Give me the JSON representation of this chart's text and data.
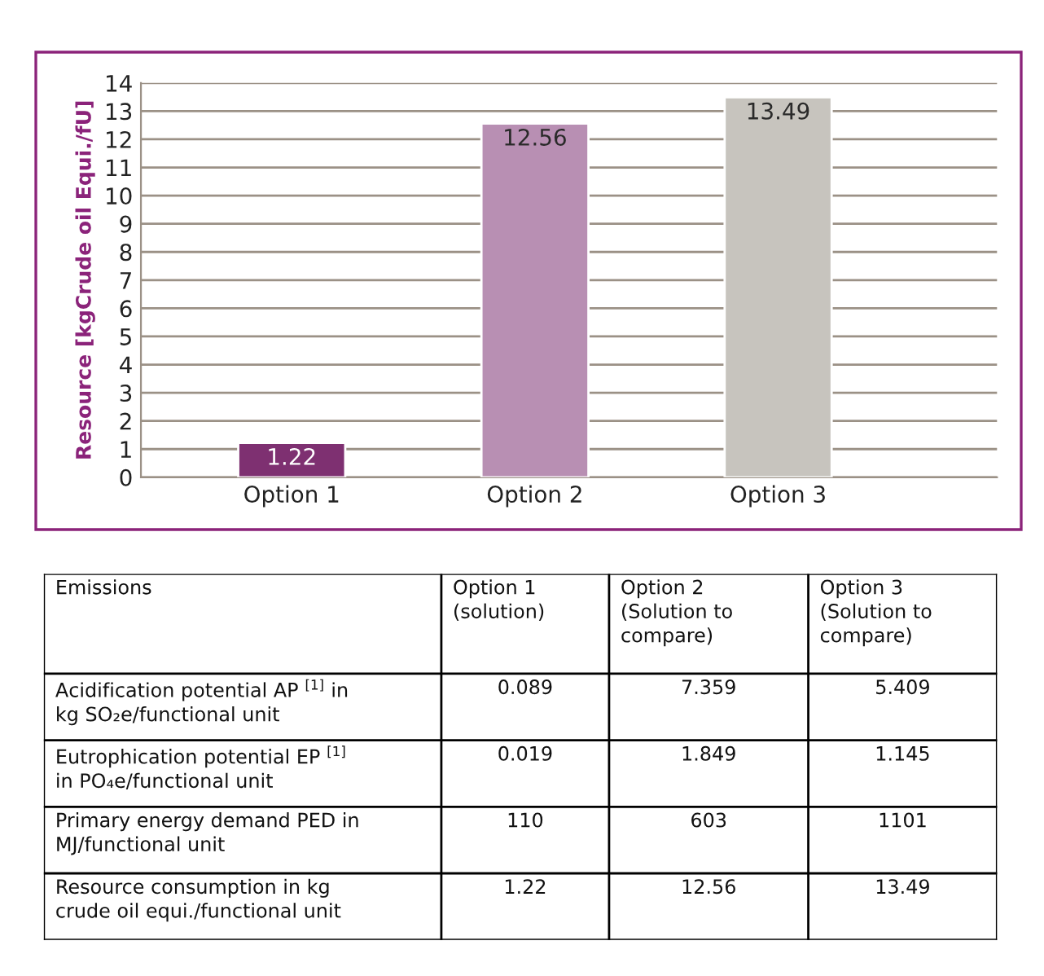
{
  "chart_data": [
    {
      "type": "bar",
      "categories": [
        "Option 1",
        "Option 2",
        "Option 3"
      ],
      "values": [
        1.22,
        12.56,
        13.49
      ],
      "colors": [
        "#8b237a",
        "#bf88b8",
        "#c9c4bc"
      ],
      "ylabel": "Resource [kgCrude oil Equi./fU]",
      "ylim": [
        0,
        14
      ],
      "yticks": [
        0,
        1,
        2,
        3,
        4,
        5,
        6,
        7,
        8,
        9,
        10,
        11,
        12,
        13,
        14
      ],
      "grid": "y",
      "data_labels": true
    },
    {
      "type": "other",
      "annotations": [
        "Emissions",
        "Option 1\n(solution)",
        "Option 2\n(Solution to\ncompare)",
        "Option 3\n(Solution to\ncompare)",
        "Acidification potential AP $^{[1]}$ in\nkg SO₂e/functional unit",
        "0.089",
        "7.359",
        "5.409",
        "Eutrophication potential EP $^{[1]}$\nin PO₄e/functional unit",
        "0.019",
        "1.849",
        "1.145",
        "Primary energy demand PED in\nMJ/functional unit",
        "110",
        "603",
        "1101",
        "Resource consumption in kg\ncrude oil equi./functional unit",
        "1.22",
        "12.56",
        "13.49"
      ]
    }
  ]
}
